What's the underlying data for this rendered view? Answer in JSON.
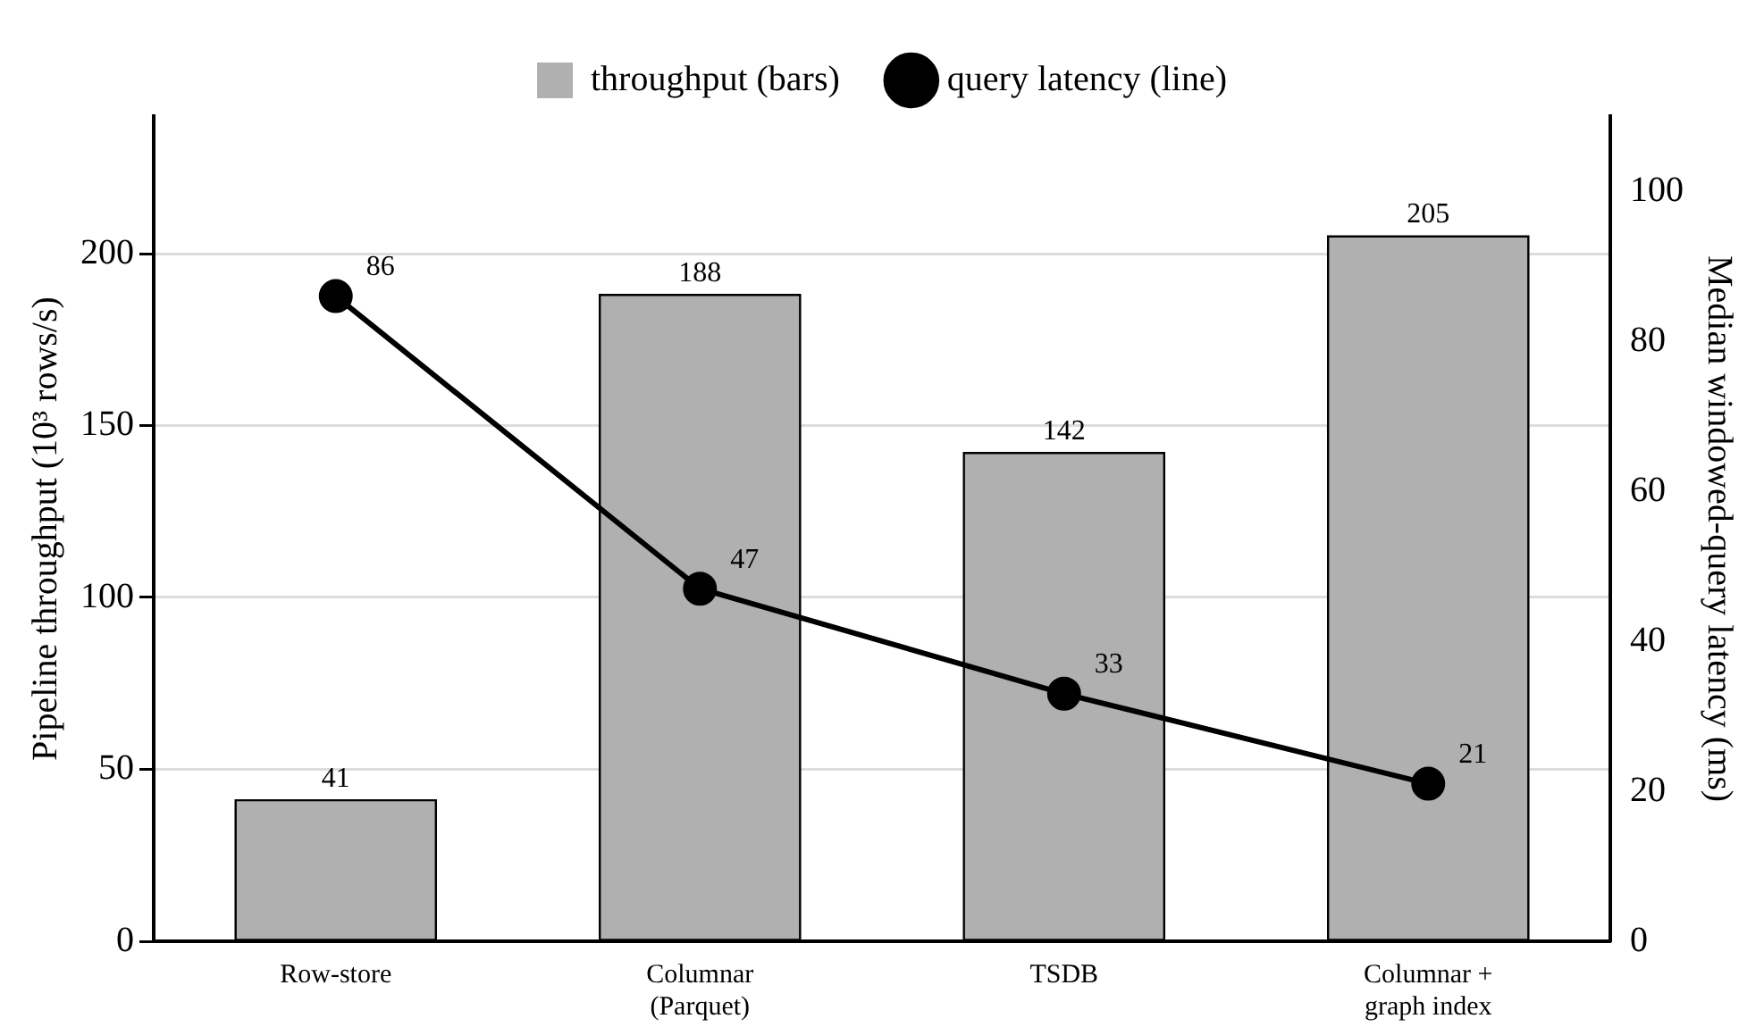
{
  "chart_data": {
    "type": "bar",
    "categories": [
      "Row-store",
      "Columnar\n(Parquet)",
      "TSDB",
      "Columnar +\ngraph index"
    ],
    "series": [
      {
        "name": "throughput (bars)",
        "color": "#b0b0b0",
        "values": [
          41,
          188,
          142,
          205
        ]
      },
      {
        "name": "query latency (line)",
        "type": "line",
        "axis": "y2",
        "color": "#000000",
        "values": [
          86,
          47,
          33,
          21
        ],
        "marker": "circle",
        "line_style": "solid"
      }
    ],
    "ylabel": "Pipeline throughput (10³ rows/s)",
    "y2label": "Median windowed-query latency (ms)",
    "ylim": [
      0,
      240
    ],
    "yticks": [
      0,
      50,
      100,
      150,
      200
    ],
    "y2lim": [
      0,
      110
    ],
    "y2ticks": [
      0,
      20,
      40,
      60,
      80,
      100
    ],
    "grid": "y",
    "legend": "top",
    "data_labels": true
  }
}
